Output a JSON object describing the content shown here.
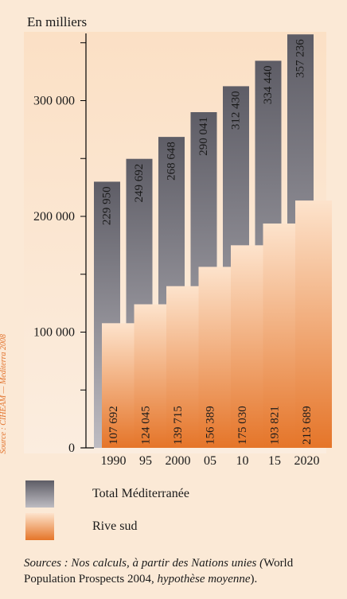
{
  "header": {
    "unit_label": "En milliers"
  },
  "sidebar_text": "Source : CIHEAM — Mediterra 2008",
  "legend": {
    "total_label": "Total Méditerranée",
    "south_label": "Rive sud"
  },
  "source": {
    "part1": "Sources : Nos calculs, à partir des Nations unies (",
    "part2": "World Population Prospects 2004, ",
    "part3": "hypothèse moyenne",
    "part4": ")."
  },
  "colors": {
    "total_top": "#5e5d66",
    "total_bottom": "#bebcc2",
    "south_top": "#fde3cc",
    "south_bottom": "#e57529",
    "axis": "#000000",
    "background": "#fbe9d6"
  },
  "chart_data": {
    "type": "bar",
    "categories": [
      "1990",
      "95",
      "2000",
      "05",
      "10",
      "15",
      "2020"
    ],
    "series": [
      {
        "name": "Total Méditerranée",
        "values": [
          229950,
          249692,
          268648,
          290041,
          312430,
          334440,
          357236
        ],
        "labels": [
          "229 950",
          "249 692",
          "268 648",
          "290 041",
          "312 430",
          "334 440",
          "357 236"
        ]
      },
      {
        "name": "Rive sud",
        "values": [
          107692,
          124045,
          139715,
          156389,
          175030,
          193821,
          213689
        ],
        "labels": [
          "107 692",
          "124 045",
          "139 715",
          "156 389",
          "175 030",
          "193 821",
          "213 689"
        ]
      }
    ],
    "ylabel": "En milliers",
    "ylim": [
      0,
      350000
    ],
    "yticks": [
      0,
      100000,
      200000,
      300000
    ],
    "ytick_labels": [
      "0",
      "100 000",
      "200 000",
      "300 000"
    ],
    "grid": false,
    "legend_position": "bottom"
  }
}
